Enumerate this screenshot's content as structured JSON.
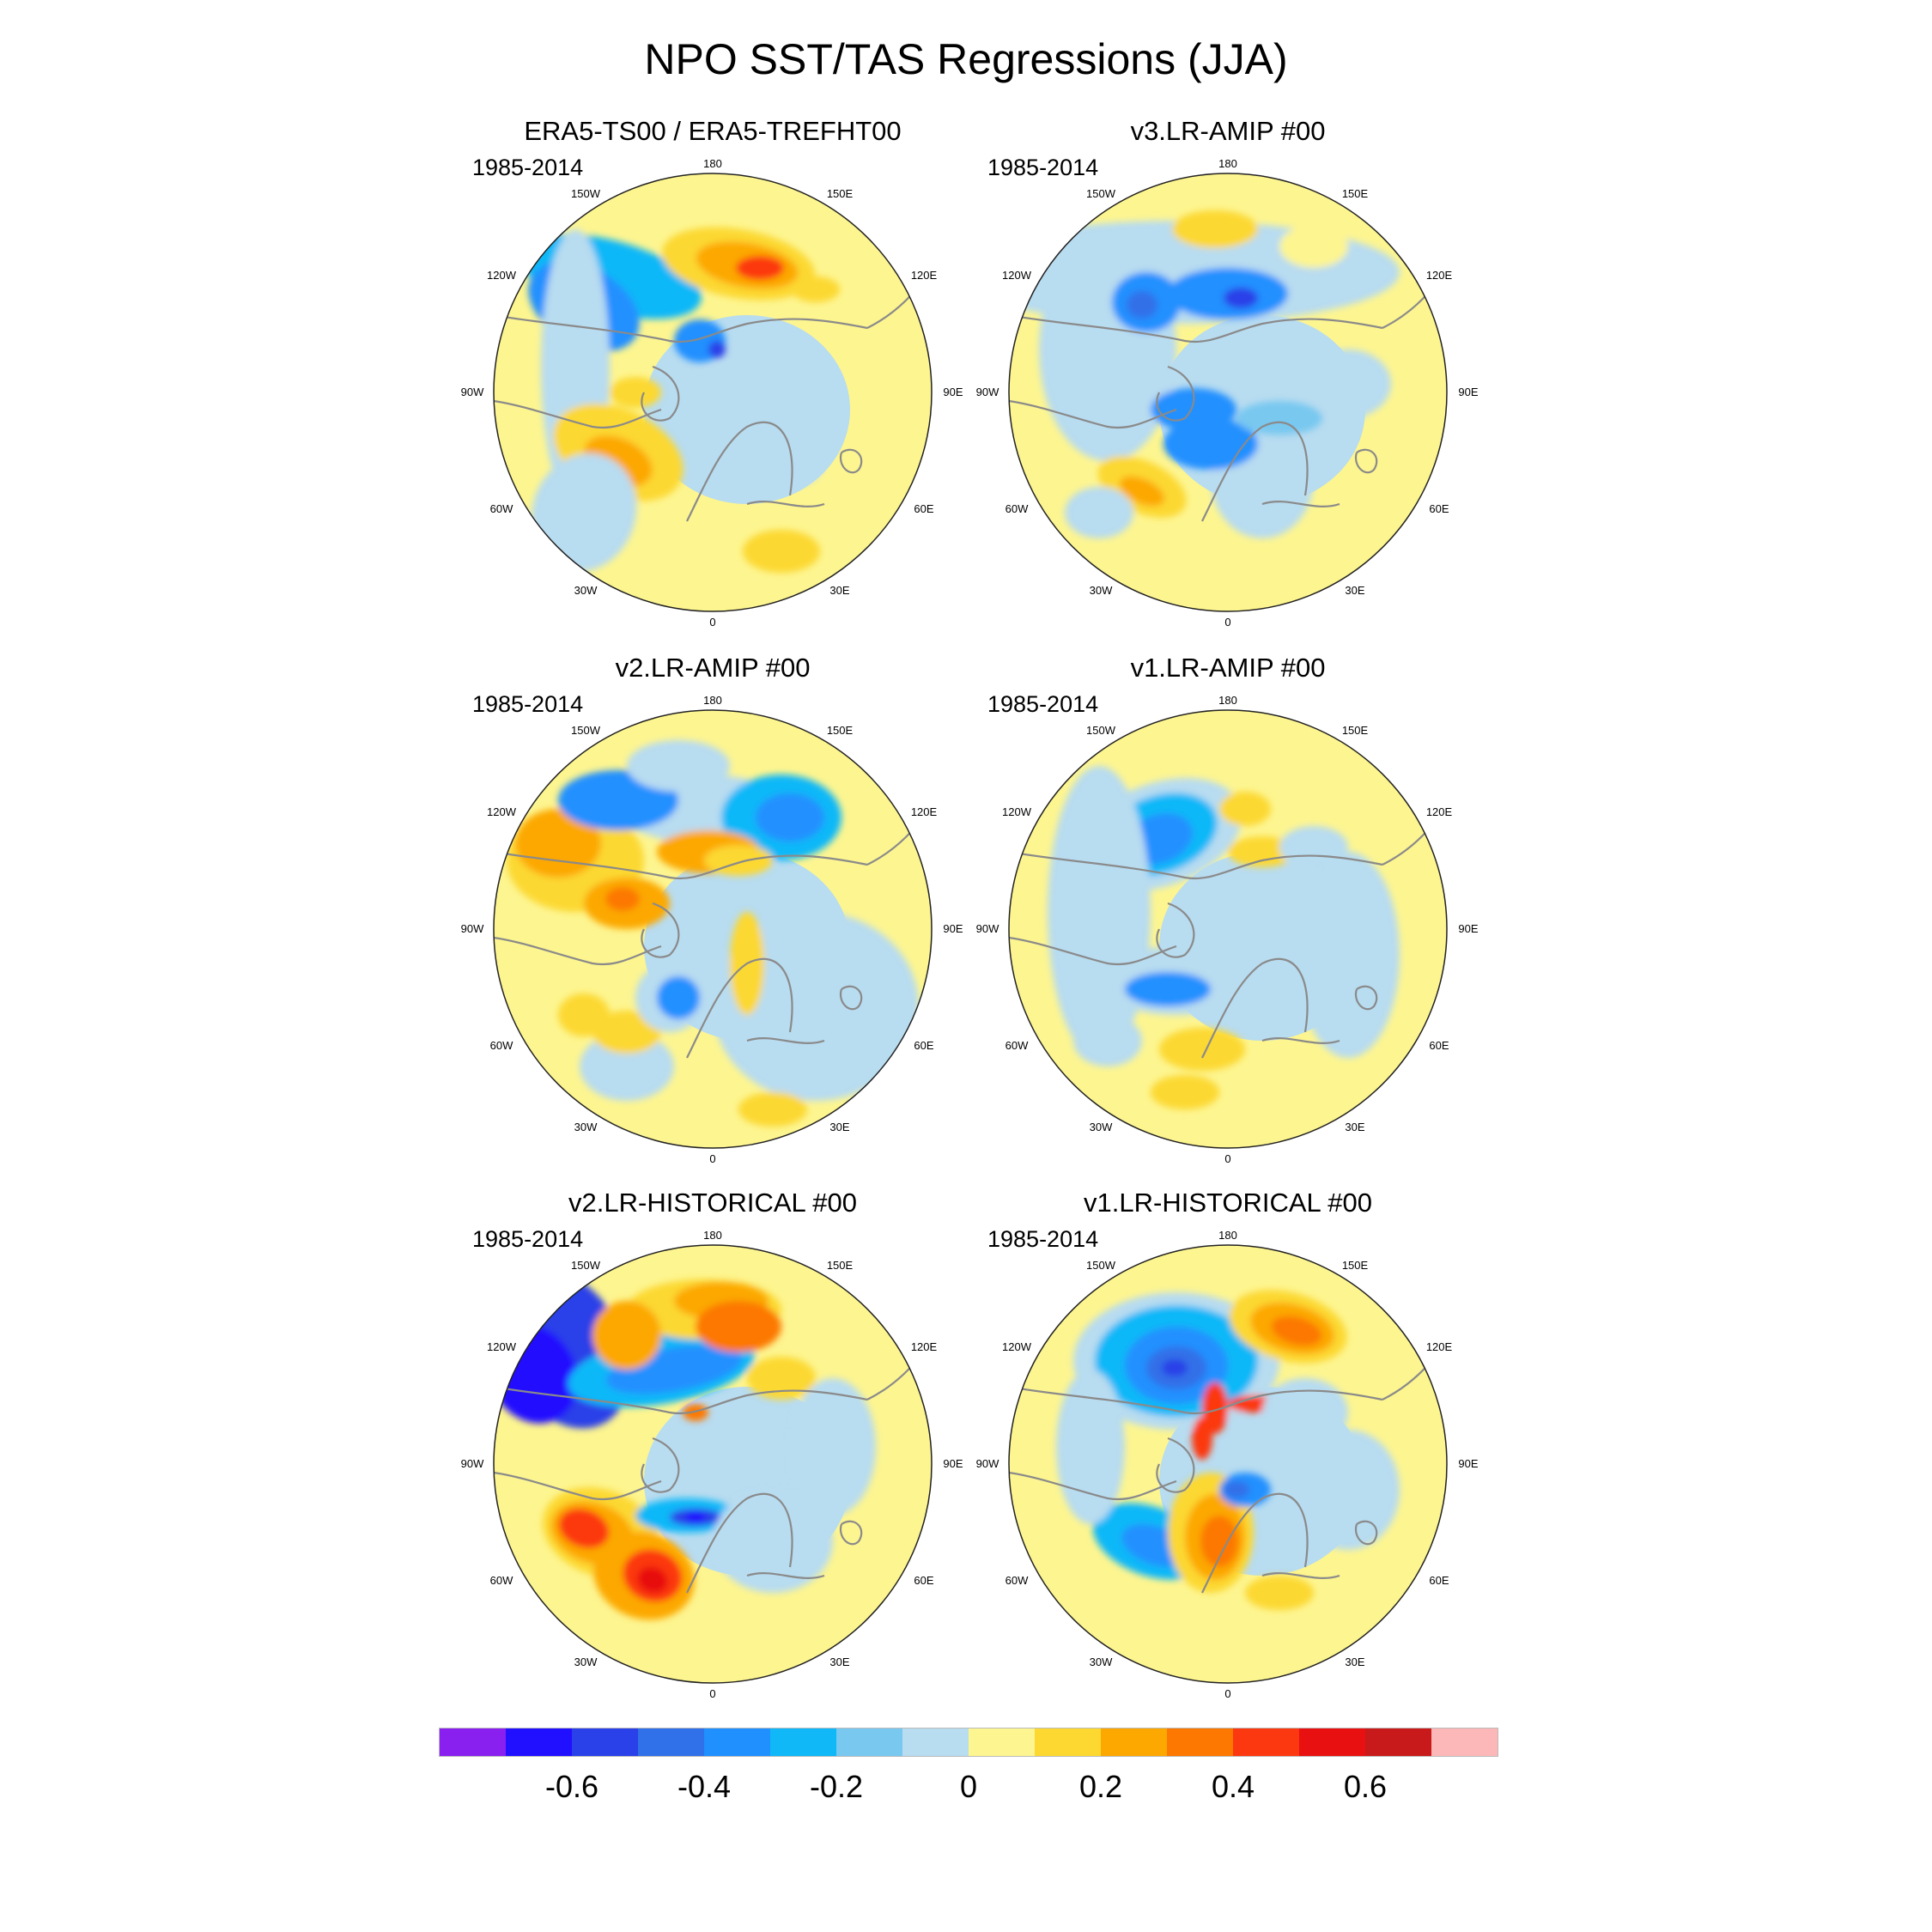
{
  "title": "NPO SST/TAS Regressions (JJA)",
  "period": "1985-2014",
  "longitude_labels": [
    "180",
    "150E",
    "120E",
    "90E",
    "60E",
    "30E",
    "0",
    "30W",
    "60W",
    "90W",
    "120W",
    "150W"
  ],
  "panels": [
    {
      "title": "ERA5-TS00 / ERA5-TREFHT00",
      "period": "1985-2014"
    },
    {
      "title": "v3.LR-AMIP  #00",
      "period": "1985-2014"
    },
    {
      "title": "v2.LR-AMIP  #00",
      "period": "1985-2014"
    },
    {
      "title": "v1.LR-AMIP  #00",
      "period": "1985-2014"
    },
    {
      "title": "v2.LR-HISTORICAL  #00",
      "period": "1985-2014"
    },
    {
      "title": "v1.LR-HISTORICAL  #00",
      "period": "1985-2014"
    }
  ],
  "colorbar": {
    "colors": [
      "#8a20f0",
      "#2010ff",
      "#2a40e8",
      "#3070e8",
      "#2090ff",
      "#10b8f8",
      "#78c8f0",
      "#b8dcf0",
      "#fdf590",
      "#fcd830",
      "#fca800",
      "#fc7800",
      "#fc3810",
      "#e81010",
      "#c81a1a",
      "#fcb8b8"
    ],
    "tick_labels": [
      "-0.6",
      "-0.4",
      "-0.2",
      "0",
      "0.2",
      "0.4",
      "0.6"
    ],
    "tick_values": [
      -0.6,
      -0.4,
      -0.2,
      0,
      0.2,
      0.4,
      0.6
    ],
    "min": -0.8,
    "max": 0.8
  },
  "palette": {
    "warm_bg": "#fdf590",
    "cool_bg": "#b8dcf0",
    "coast": "#8a8a8a"
  }
}
